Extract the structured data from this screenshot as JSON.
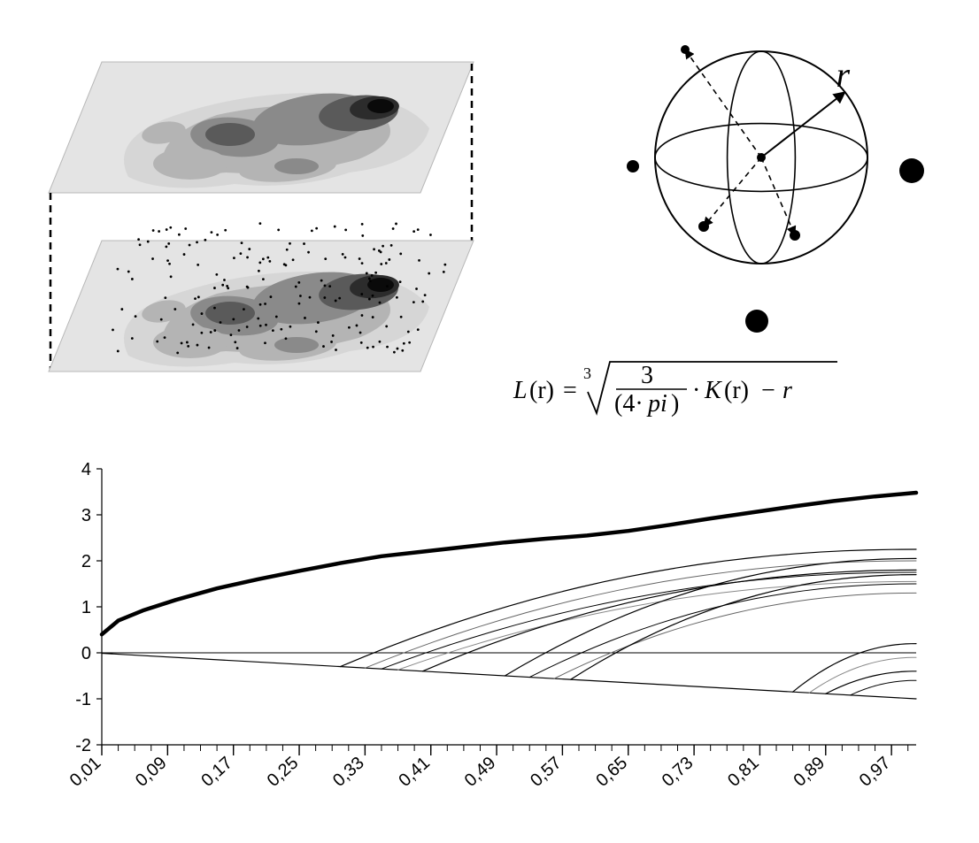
{
  "figure": {
    "background_color": "#ffffff",
    "stroke_color": "#000000",
    "density_colors": [
      "#e8e8e8",
      "#c0c0c0",
      "#989898",
      "#707070",
      "#404040",
      "#181818"
    ]
  },
  "top_left": {
    "type": "infographic",
    "description": "Two stacked density slabs with scatter points on lower slab",
    "slab_fill": "#e4e4e4",
    "slab_stroke": "#b8b8b8",
    "dash_color": "#000000",
    "density_colors": [
      "#d6d6d6",
      "#b4b4b4",
      "#8a8a8a",
      "#5a5a5a",
      "#2c2c2c",
      "#0a0a0a"
    ],
    "scatter_dot_color": "#000000",
    "scatter_dot_r": 1.4,
    "scatter_n": 180
  },
  "top_right": {
    "type": "diagram",
    "description": "Sphere with radius r, center, dashed arrows to interior points, exterior points",
    "sphere_stroke": "#000000",
    "sphere_stroke_width": 2,
    "radius_label": "r",
    "radius_fontsize": 40,
    "radius_fontstyle": "italic",
    "center": {
      "r": 5
    },
    "interior_points": [
      {
        "x": -86,
        "y": -122,
        "r": 5
      },
      {
        "x": -65,
        "y": 78,
        "r": 6
      },
      {
        "x": 38,
        "y": 88,
        "r": 6
      }
    ],
    "exterior_points": [
      {
        "x": -145,
        "y": 10,
        "r": 7
      },
      {
        "x": 170,
        "y": 15,
        "r": 14
      },
      {
        "x": -5,
        "y": 185,
        "r": 13
      }
    ],
    "arrow_dash": "6 5"
  },
  "formula": {
    "text_parts": {
      "L": "L",
      "r1": "(r)",
      "eq": "=",
      "root_index": "3",
      "frac_num": "3",
      "frac_den_open": "(4·",
      "frac_den_pi": "pi",
      "frac_den_close": ")",
      "dot": "·",
      "K": "K",
      "r2": "(r)",
      "minus": "− ",
      "r3": "r"
    },
    "fontsize": 28,
    "fontsize_small": 18,
    "color": "#000000"
  },
  "bottom_chart": {
    "type": "line",
    "xlim": [
      0.01,
      1.0
    ],
    "ylim": [
      -2,
      4
    ],
    "ytick_step": 1,
    "yticks": [
      -2,
      -1,
      0,
      1,
      2,
      3,
      4
    ],
    "xticks_major": [
      "0,01",
      "0,09",
      "0,17",
      "0,25",
      "0,33",
      "0,41",
      "0,49",
      "0,57",
      "0,65",
      "0,73",
      "0,81",
      "0,89",
      "0,97"
    ],
    "xtick_major_values": [
      0.01,
      0.09,
      0.17,
      0.25,
      0.33,
      0.41,
      0.49,
      0.57,
      0.65,
      0.73,
      0.81,
      0.89,
      0.97
    ],
    "xtick_minor_step": 0.02,
    "axis_color": "#000000",
    "axis_width": 1.2,
    "tick_fontsize": 20,
    "label_rotate": -42,
    "main_curve": {
      "color": "#000000",
      "width": 4.5,
      "points": [
        [
          0.01,
          0.4
        ],
        [
          0.03,
          0.7
        ],
        [
          0.06,
          0.92
        ],
        [
          0.1,
          1.15
        ],
        [
          0.15,
          1.4
        ],
        [
          0.2,
          1.6
        ],
        [
          0.25,
          1.78
        ],
        [
          0.3,
          1.95
        ],
        [
          0.35,
          2.1
        ],
        [
          0.4,
          2.2
        ],
        [
          0.45,
          2.3
        ],
        [
          0.5,
          2.4
        ],
        [
          0.55,
          2.48
        ],
        [
          0.6,
          2.55
        ],
        [
          0.65,
          2.65
        ],
        [
          0.7,
          2.78
        ],
        [
          0.75,
          2.92
        ],
        [
          0.8,
          3.05
        ],
        [
          0.85,
          3.18
        ],
        [
          0.9,
          3.3
        ],
        [
          0.95,
          3.4
        ],
        [
          1.0,
          3.48
        ]
      ]
    },
    "diag_line": {
      "color": "#000000",
      "width": 1.2,
      "points": [
        [
          0.01,
          -0.01
        ],
        [
          1.0,
          -1.0
        ]
      ]
    },
    "thin_curves": [
      {
        "color": "#000000",
        "width": 1.2,
        "start_x": 0.3,
        "end_y": 2.25
      },
      {
        "color": "#666666",
        "width": 1.0,
        "start_x": 0.33,
        "end_y": 2.0
      },
      {
        "color": "#000000",
        "width": 1.0,
        "start_x": 0.35,
        "end_y": 1.75
      },
      {
        "color": "#888888",
        "width": 1.0,
        "start_x": 0.37,
        "end_y": 1.55
      },
      {
        "color": "#000000",
        "width": 1.2,
        "start_x": 0.4,
        "end_y": 1.8
      },
      {
        "color": "#000000",
        "width": 1.2,
        "start_x": 0.5,
        "end_y": 2.05
      },
      {
        "color": "#000000",
        "width": 1.0,
        "start_x": 0.53,
        "end_y": 1.5
      },
      {
        "color": "#666666",
        "width": 1.0,
        "start_x": 0.56,
        "end_y": 1.3
      },
      {
        "color": "#000000",
        "width": 1.2,
        "start_x": 0.58,
        "end_y": 1.7
      },
      {
        "color": "#000000",
        "width": 1.2,
        "start_x": 0.85,
        "end_y": 0.2
      },
      {
        "color": "#888888",
        "width": 1.0,
        "start_x": 0.87,
        "end_y": -0.1
      },
      {
        "color": "#000000",
        "width": 1.2,
        "start_x": 0.89,
        "end_y": -0.4
      },
      {
        "color": "#000000",
        "width": 1.0,
        "start_x": 0.92,
        "end_y": -0.6
      }
    ]
  }
}
